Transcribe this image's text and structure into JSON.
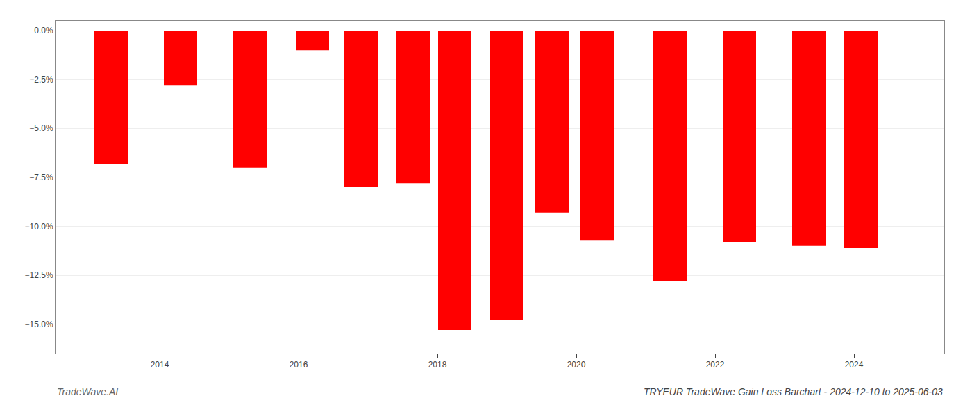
{
  "chart_data": {
    "type": "bar",
    "title": "TRYEUR TradeWave Gain Loss Barchart - 2024-12-10 to 2025-06-03",
    "annotations": [
      "TradeWave.AI"
    ],
    "x": [
      2013.3,
      2014.3,
      2015.3,
      2016.2,
      2016.9,
      2017.65,
      2018.25,
      2019.0,
      2019.65,
      2020.3,
      2021.35,
      2022.35,
      2023.35,
      2024.1
    ],
    "values": [
      -6.8,
      -2.8,
      -7.0,
      -1.0,
      -8.0,
      -7.8,
      -15.3,
      -14.8,
      -9.3,
      -10.7,
      -12.8,
      -10.8,
      -11.0,
      -11.1
    ],
    "color": "#ff0000",
    "xlim": [
      2012.5,
      2025.3
    ],
    "xticks": [
      2014,
      2016,
      2018,
      2020,
      2022,
      2024
    ],
    "ylim": [
      -16.5,
      0.5
    ],
    "yticks": [
      {
        "value": 0.0,
        "label": "0.0%"
      },
      {
        "value": -2.5,
        "label": "−2.5%"
      },
      {
        "value": -5.0,
        "label": "−5.0%"
      },
      {
        "value": -7.5,
        "label": "−7.5%"
      },
      {
        "value": -10.0,
        "label": "−10.0%"
      },
      {
        "value": -12.5,
        "label": "−12.5%"
      },
      {
        "value": -15.0,
        "label": "−15.0%"
      }
    ],
    "grid": true
  }
}
